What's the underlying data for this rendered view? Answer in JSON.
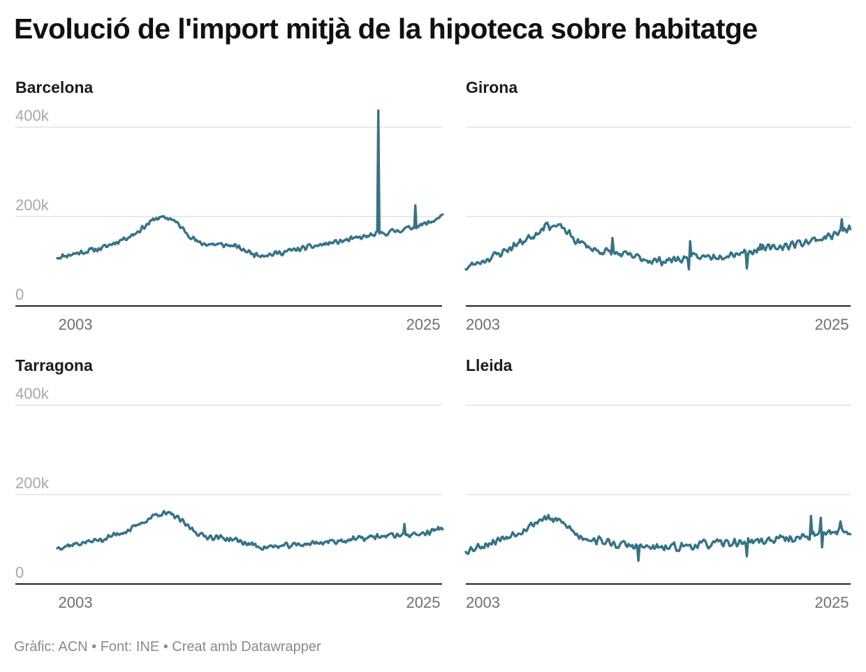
{
  "title": "Evolució de l'import mitjà de la hipoteca sobre habitatge",
  "footer": "Gràfic: ACN • Font: INE • Creat amb Datawrapper",
  "colors": {
    "line": "#357387",
    "grid": "#e2e2e2",
    "axis": "#222222"
  },
  "chart_data": [
    {
      "type": "line",
      "title": "Barcelona",
      "ylim": [
        0,
        400000
      ],
      "yticks": [
        {
          "value": 0,
          "label": "0"
        },
        {
          "value": 200000,
          "label": "200k"
        },
        {
          "value": 400000,
          "label": "400k"
        }
      ],
      "xticks": [
        {
          "value": 2003,
          "label": "2003"
        },
        {
          "value": 2025,
          "label": "2025"
        }
      ],
      "x_range": [
        2000.0,
        2025.3
      ],
      "keypoints": [
        [
          2000.0,
          109000
        ],
        [
          2003.0,
          130000
        ],
        [
          2005.0,
          160000
        ],
        [
          2006.5,
          197000
        ],
        [
          2007.5,
          196000
        ],
        [
          2008.3,
          170000
        ],
        [
          2009.3,
          140000
        ],
        [
          2011.5,
          135000
        ],
        [
          2013.0,
          115000
        ],
        [
          2014.0,
          115000
        ],
        [
          2016.0,
          128000
        ],
        [
          2018.0,
          141000
        ],
        [
          2019.5,
          150000
        ],
        [
          2020.5,
          157000
        ],
        [
          2021.5,
          163000
        ],
        [
          2022.5,
          170000
        ],
        [
          2023.5,
          177000
        ],
        [
          2024.5,
          187000
        ],
        [
          2025.3,
          204000
        ]
      ],
      "noise": 7000,
      "seed": 11,
      "spikes": [
        [
          2021.1,
          437000
        ],
        [
          2023.5,
          225000
        ]
      ]
    },
    {
      "type": "line",
      "title": "Girona",
      "ylim": [
        0,
        400000
      ],
      "yticks": [],
      "xticks": [
        {
          "value": 2003,
          "label": "2003"
        },
        {
          "value": 2025,
          "label": "2025"
        }
      ],
      "x_range": [
        2003.0,
        2025.3
      ],
      "keypoints": [
        [
          2003.0,
          85000
        ],
        [
          2005.0,
          118000
        ],
        [
          2007.0,
          160000
        ],
        [
          2007.6,
          182000
        ],
        [
          2008.6,
          175000
        ],
        [
          2009.3,
          148000
        ],
        [
          2010.5,
          125000
        ],
        [
          2012.5,
          112000
        ],
        [
          2014.0,
          100000
        ],
        [
          2015.5,
          105000
        ],
        [
          2017.5,
          112000
        ],
        [
          2019.0,
          120000
        ],
        [
          2020.5,
          128000
        ],
        [
          2022.0,
          138000
        ],
        [
          2023.5,
          150000
        ],
        [
          2024.5,
          162000
        ],
        [
          2025.3,
          172000
        ]
      ],
      "noise": 11000,
      "seed": 23,
      "spikes": [
        [
          2011.5,
          152000
        ],
        [
          2016.0,
          145000
        ],
        [
          2016.0,
          82000
        ],
        [
          2019.3,
          84000
        ],
        [
          2020.1,
          138000
        ],
        [
          2024.8,
          194000
        ]
      ]
    },
    {
      "type": "line",
      "title": "Tarragona",
      "ylim": [
        0,
        400000
      ],
      "yticks": [
        {
          "value": 0,
          "label": "0"
        },
        {
          "value": 200000,
          "label": "200k"
        },
        {
          "value": 400000,
          "label": "400k"
        }
      ],
      "xticks": [
        {
          "value": 2003,
          "label": "2003"
        },
        {
          "value": 2025,
          "label": "2025"
        }
      ],
      "x_range": [
        2000.0,
        2025.3
      ],
      "keypoints": [
        [
          2000.0,
          82000
        ],
        [
          2003.0,
          100000
        ],
        [
          2005.0,
          125000
        ],
        [
          2006.6,
          158000
        ],
        [
          2007.6,
          155000
        ],
        [
          2008.6,
          128000
        ],
        [
          2009.5,
          108000
        ],
        [
          2011.5,
          100000
        ],
        [
          2012.5,
          90000
        ],
        [
          2013.5,
          82000
        ],
        [
          2015.0,
          85000
        ],
        [
          2017.0,
          92000
        ],
        [
          2019.0,
          98000
        ],
        [
          2021.0,
          106000
        ],
        [
          2022.5,
          110000
        ],
        [
          2024.0,
          112000
        ],
        [
          2025.3,
          126000
        ]
      ],
      "noise": 7500,
      "seed": 37,
      "spikes": [
        [
          2022.8,
          134000
        ]
      ]
    },
    {
      "type": "line",
      "title": "Lleida",
      "ylim": [
        0,
        400000
      ],
      "yticks": [],
      "xticks": [
        {
          "value": 2003,
          "label": "2003"
        },
        {
          "value": 2025,
          "label": "2025"
        }
      ],
      "x_range": [
        2003.0,
        2025.3
      ],
      "keypoints": [
        [
          2003.0,
          75000
        ],
        [
          2005.0,
          100000
        ],
        [
          2006.5,
          125000
        ],
        [
          2007.5,
          148000
        ],
        [
          2008.6,
          138000
        ],
        [
          2009.5,
          108000
        ],
        [
          2011.5,
          90000
        ],
        [
          2013.0,
          83000
        ],
        [
          2014.5,
          80000
        ],
        [
          2016.5,
          88000
        ],
        [
          2018.5,
          92000
        ],
        [
          2020.5,
          98000
        ],
        [
          2022.0,
          103000
        ],
        [
          2023.5,
          110000
        ],
        [
          2024.5,
          120000
        ],
        [
          2025.3,
          116000
        ]
      ],
      "noise": 11500,
      "seed": 53,
      "spikes": [
        [
          2013.0,
          52000
        ],
        [
          2019.3,
          62000
        ],
        [
          2023.0,
          152000
        ],
        [
          2023.6,
          148000
        ],
        [
          2023.6,
          82000
        ],
        [
          2024.7,
          140000
        ]
      ]
    }
  ]
}
